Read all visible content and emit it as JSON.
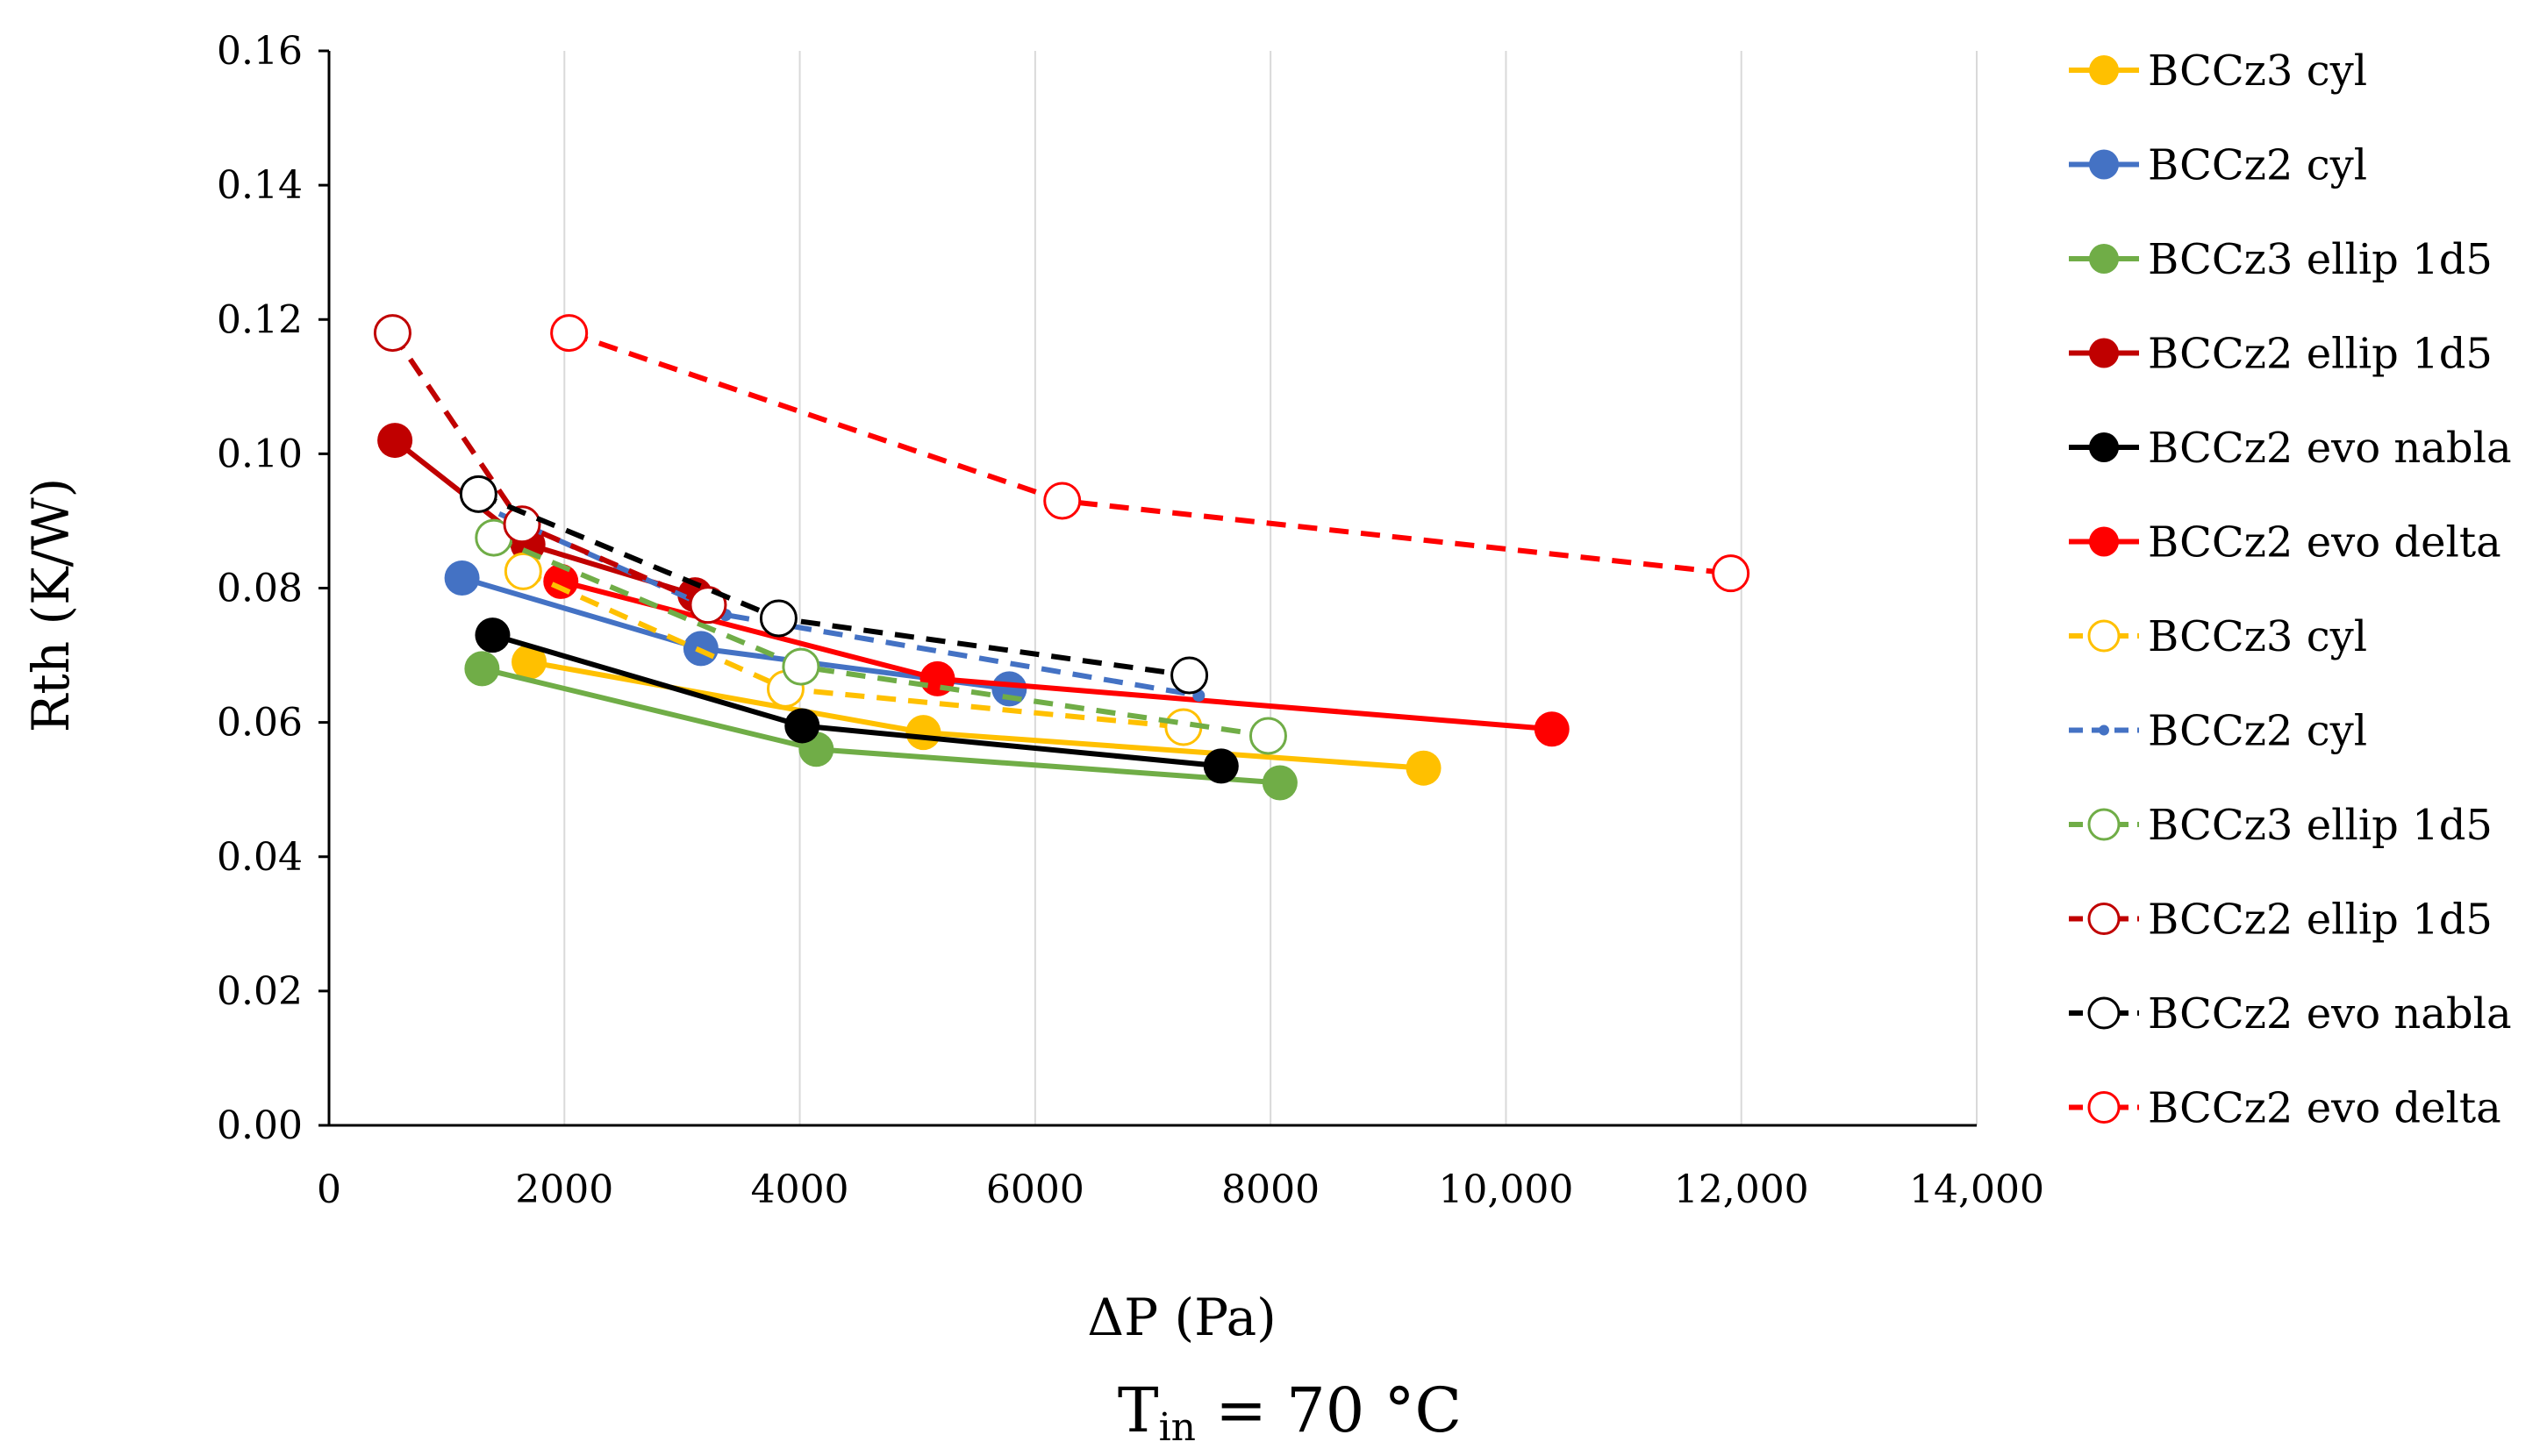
{
  "chart_data": {
    "type": "line",
    "title": "",
    "xlabel": "ΔP (Pa)",
    "ylabel": "Rth (K/W)",
    "caption": {
      "main": "T",
      "sub": "in",
      "rest": " = 70 °C"
    },
    "xlim": [
      0,
      14000
    ],
    "ylim": [
      0,
      0.16
    ],
    "x_ticks": [
      0,
      2000,
      4000,
      6000,
      8000,
      10000,
      12000,
      14000
    ],
    "x_tick_labels": [
      "0",
      "2000",
      "4000",
      "6000",
      "8000",
      "10,000",
      "12,000",
      "14,000"
    ],
    "y_ticks": [
      0,
      0.02,
      0.04,
      0.06,
      0.08,
      0.1,
      0.12,
      0.14,
      0.16
    ],
    "y_tick_labels": [
      "0.00",
      "0.02",
      "0.04",
      "0.06",
      "0.08",
      "0.10",
      "0.12",
      "0.14",
      "0.16"
    ],
    "grid": "vertical",
    "legend_position": "right",
    "series": [
      {
        "name": "BCCz3 cyl",
        "color": "#FFC000",
        "dash": "solid",
        "marker": "filled",
        "points": [
          [
            1700,
            0.069
          ],
          [
            5050,
            0.0585
          ],
          [
            9300,
            0.0532
          ]
        ]
      },
      {
        "name": "BCCz2 cyl",
        "color": "#4472C4",
        "dash": "solid",
        "marker": "filled",
        "points": [
          [
            1130,
            0.0815
          ],
          [
            3160,
            0.071
          ],
          [
            5780,
            0.065
          ]
        ]
      },
      {
        "name": "BCCz3 ellip 1d5",
        "color": "#70AD47",
        "dash": "solid",
        "marker": "filled",
        "points": [
          [
            1300,
            0.068
          ],
          [
            4140,
            0.056
          ],
          [
            8080,
            0.051
          ]
        ]
      },
      {
        "name": "BCCz2 ellip 1d5",
        "color": "#C00000",
        "dash": "solid",
        "marker": "filled",
        "points": [
          [
            560,
            0.102
          ],
          [
            1690,
            0.0865
          ],
          [
            3110,
            0.079
          ]
        ]
      },
      {
        "name": "BCCz2 evo nabla",
        "color": "#000000",
        "dash": "solid",
        "marker": "filled",
        "points": [
          [
            1390,
            0.073
          ],
          [
            4020,
            0.0595
          ],
          [
            7580,
            0.0535
          ]
        ]
      },
      {
        "name": "BCCz2 evo delta",
        "color": "#FF0000",
        "dash": "solid",
        "marker": "filled",
        "points": [
          [
            1970,
            0.081
          ],
          [
            5170,
            0.0665
          ],
          [
            10390,
            0.059
          ]
        ]
      },
      {
        "name": "BCCz3 cyl",
        "color": "#FFC000",
        "dash": "dashed",
        "marker": "open",
        "points": [
          [
            1650,
            0.0825
          ],
          [
            3880,
            0.065
          ],
          [
            7260,
            0.0593
          ]
        ]
      },
      {
        "name": "BCCz2 cyl",
        "color": "#4472C4",
        "dash": "dashed",
        "marker": "small",
        "points": [
          [
            1200,
            0.093
          ],
          [
            3370,
            0.076
          ],
          [
            7390,
            0.064
          ]
        ]
      },
      {
        "name": "BCCz3 ellip 1d5",
        "color": "#70AD47",
        "dash": "dashed",
        "marker": "open",
        "points": [
          [
            1400,
            0.0875
          ],
          [
            4010,
            0.0683
          ],
          [
            7980,
            0.058
          ]
        ]
      },
      {
        "name": "BCCz2 ellip 1d5",
        "color": "#C00000",
        "dash": "dashed",
        "marker": "open",
        "points": [
          [
            540,
            0.118
          ],
          [
            1640,
            0.0895
          ],
          [
            3220,
            0.0775
          ]
        ]
      },
      {
        "name": "BCCz2 evo nabla",
        "color": "#000000",
        "dash": "dashed",
        "marker": "open",
        "points": [
          [
            1270,
            0.094
          ],
          [
            3820,
            0.0755
          ],
          [
            7310,
            0.067
          ]
        ]
      },
      {
        "name": "BCCz2 evo delta",
        "color": "#FF0000",
        "dash": "dashed",
        "marker": "open",
        "points": [
          [
            2040,
            0.118
          ],
          [
            6230,
            0.093
          ],
          [
            11910,
            0.0822
          ]
        ]
      }
    ]
  }
}
